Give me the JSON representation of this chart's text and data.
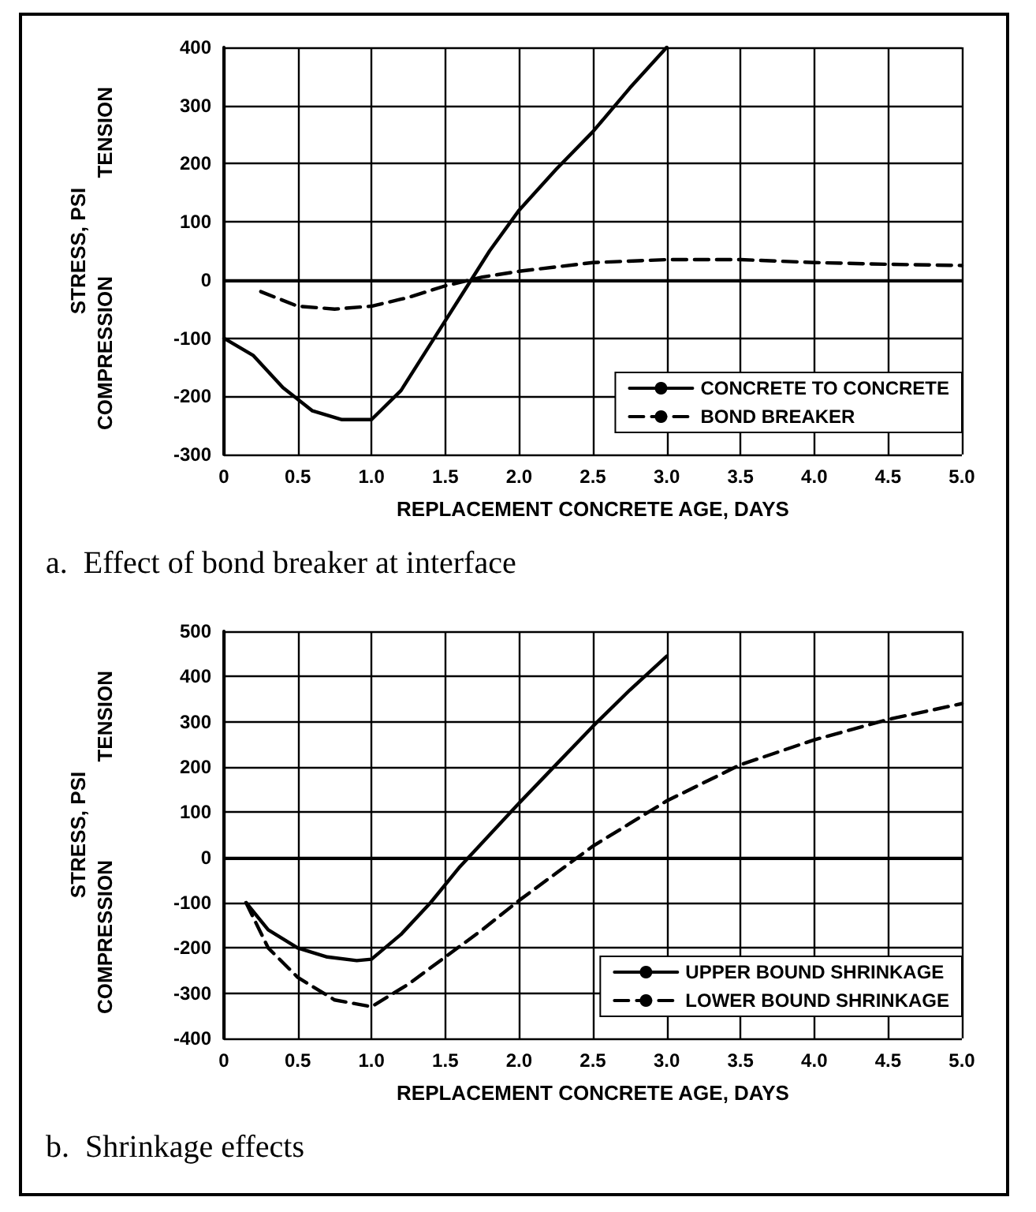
{
  "chart_data": [
    {
      "type": "line",
      "title": "a.  Effect of bond breaker at interface",
      "xlabel": "REPLACEMENT CONCRETE AGE, DAYS",
      "ylabel": "STRESS, PSI",
      "annotations": [
        "COMPRESSION",
        "TENSION"
      ],
      "xlim": [
        0,
        5
      ],
      "xticks": [
        0,
        0.5,
        {
          "value": 1,
          "label": "1.0"
        },
        1.5,
        {
          "value": 2,
          "label": "2.0"
        },
        2.5,
        {
          "value": 3,
          "label": "3.0"
        },
        3.5,
        {
          "value": 4,
          "label": "4.0"
        },
        4.5,
        {
          "value": 5,
          "label": "5.0"
        }
      ],
      "ylim": [
        -300,
        400
      ],
      "yticks": [
        -300,
        -200,
        -100,
        0,
        100,
        200,
        300,
        400
      ],
      "grid": true,
      "legend": "bottom right",
      "marker": "none",
      "series": [
        {
          "name": "CONCRETE TO CONCRETE",
          "color": "#000000",
          "line_style": "solid",
          "x": [
            0,
            0.2,
            0.4,
            0.6,
            0.8,
            1.0,
            1.2,
            1.4,
            1.6,
            1.8,
            2.0,
            2.25,
            2.5,
            2.75,
            3.0
          ],
          "values": [
            -100,
            -130,
            -185,
            -225,
            -240,
            -240,
            -190,
            -110,
            -30,
            50,
            120,
            190,
            255,
            330,
            400
          ]
        },
        {
          "name": "BOND BREAKER",
          "color": "#000000",
          "line_style": "dashed",
          "x": [
            0.25,
            0.5,
            0.75,
            1.0,
            1.25,
            1.5,
            1.75,
            2.0,
            2.5,
            3.0,
            3.5,
            4.0,
            4.5,
            5.0
          ],
          "values": [
            -20,
            -45,
            -50,
            -45,
            -30,
            -10,
            5,
            15,
            30,
            35,
            35,
            30,
            27,
            25
          ]
        }
      ]
    },
    {
      "type": "line",
      "title": "b.  Shrinkage effects",
      "xlabel": "REPLACEMENT CONCRETE AGE, DAYS",
      "ylabel": "STRESS, PSI",
      "annotations": [
        "COMPRESSION",
        "TENSION"
      ],
      "xlim": [
        0,
        5
      ],
      "xticks": [
        0,
        0.5,
        {
          "value": 1,
          "label": "1.0"
        },
        1.5,
        {
          "value": 2,
          "label": "2.0"
        },
        2.5,
        {
          "value": 3,
          "label": "3.0"
        },
        3.5,
        {
          "value": 4,
          "label": "4.0"
        },
        4.5,
        {
          "value": 5,
          "label": "5.0"
        }
      ],
      "ylim": [
        -400,
        500
      ],
      "yticks": [
        -400,
        -300,
        -200,
        -100,
        0,
        100,
        200,
        300,
        400,
        500
      ],
      "grid": true,
      "legend": "bottom right",
      "marker": "none",
      "series": [
        {
          "name": "UPPER BOUND SHRINKAGE",
          "color": "#000000",
          "line_style": "solid",
          "x": [
            0.15,
            0.3,
            0.5,
            0.7,
            0.9,
            1.0,
            1.2,
            1.4,
            1.6,
            1.8,
            2.0,
            2.25,
            2.5,
            2.75,
            3.0
          ],
          "values": [
            -100,
            -160,
            -200,
            -220,
            -228,
            -225,
            -170,
            -100,
            -20,
            50,
            120,
            205,
            290,
            370,
            445
          ]
        },
        {
          "name": "LOWER BOUND SHRINKAGE",
          "color": "#000000",
          "line_style": "dashed",
          "x": [
            0.15,
            0.3,
            0.5,
            0.75,
            1.0,
            1.25,
            1.5,
            1.75,
            2.0,
            2.25,
            2.5,
            2.75,
            3.0,
            3.5,
            4.0,
            4.5,
            5.0
          ],
          "values": [
            -100,
            -200,
            -265,
            -315,
            -330,
            -280,
            -220,
            -160,
            -95,
            -35,
            25,
            75,
            125,
            205,
            260,
            305,
            340
          ]
        }
      ]
    }
  ]
}
